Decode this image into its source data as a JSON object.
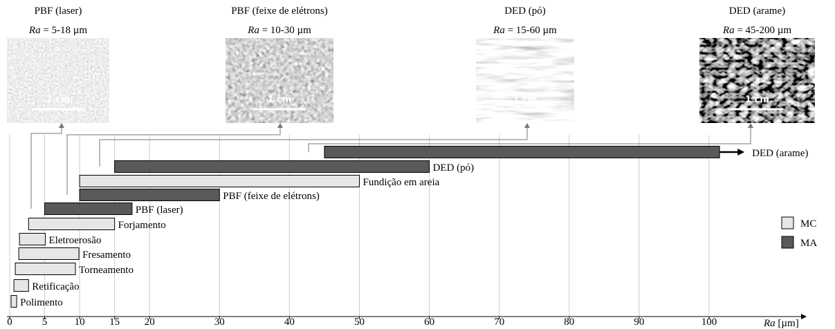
{
  "chart_data": {
    "type": "range_bar",
    "images": [
      {
        "title": "PBF (laser)",
        "prefix": "Ra",
        "text": "= 5-18 µm",
        "scale": "1 cm"
      },
      {
        "title": "PBF (feixe de elétrons)",
        "prefix": "Ra",
        "text": "= 10-30 µm",
        "scale": "1 cm"
      },
      {
        "title": "DED (pó)",
        "prefix": "Ra",
        "text": "= 15-60 µm",
        "scale": "1 cm"
      },
      {
        "title": "DED (arame)",
        "prefix": "Ra",
        "text": "= 45-200 µm",
        "scale": "1 cm"
      }
    ],
    "categories": [
      "Polimento",
      "Retificação",
      "Torneamento",
      "Fresamento",
      "Eletroerosão",
      "Forjamento",
      "PBF (laser)",
      "PBF (feixe de elétrons)",
      "Fundição em areia",
      "DED (pó)",
      "DED (arame)"
    ],
    "series": [
      {
        "name": "MC",
        "color": "#e6e6e6",
        "values": [
          [
            0.2,
            1
          ],
          [
            0.6,
            2.7
          ],
          [
            0.8,
            9.4
          ],
          [
            1.3,
            9.9
          ],
          [
            1.4,
            5.1
          ],
          [
            2.7,
            15
          ],
          null,
          null,
          [
            10,
            50
          ],
          null,
          null
        ]
      },
      {
        "name": "MA",
        "color": "#595959",
        "values": [
          null,
          null,
          null,
          null,
          null,
          null,
          [
            5,
            17.5
          ],
          [
            10,
            30
          ],
          null,
          [
            15,
            60
          ],
          [
            45,
            101.5
          ]
        ]
      }
    ],
    "continues": [
      false,
      false,
      false,
      false,
      false,
      false,
      false,
      false,
      false,
      false,
      true
    ],
    "xlim": [
      0,
      114
    ],
    "xticks": [
      0,
      5,
      10,
      15,
      20,
      30,
      40,
      50,
      60,
      70,
      80,
      90,
      100
    ],
    "xlabel_var": "Ra",
    "xlabel_unit": "[µm]",
    "grid": true
  }
}
